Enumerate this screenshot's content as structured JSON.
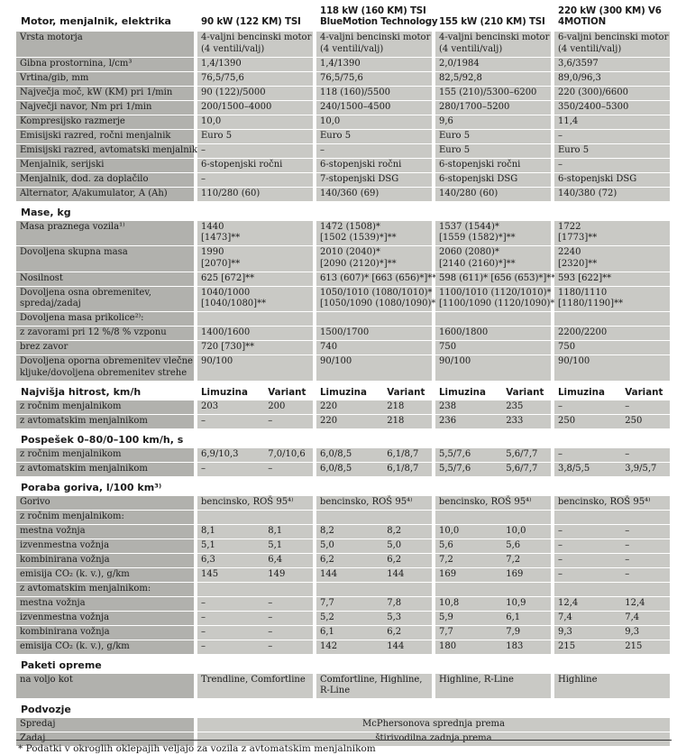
{
  "page": {
    "footnote": "* Podatki v okroglih oklepajih veljajo za vozila z avtomatskim menjalnikom"
  },
  "table": {
    "header": {
      "label": "Motor, menjalnik, elektrika",
      "engines": [
        "90 kW (122 KM) TSI",
        "118 kW (160 KM) TSI\nBlueMotion Technology",
        "155 kW (210 KM) TSI",
        "220 kW (300 KM) V6\n4MOTION"
      ]
    },
    "sections": [
      {
        "title": null,
        "rows": [
          {
            "label": "Vrsta motorja",
            "v": [
              "4-valjni bencinski motor\n(4 ventili/valj)",
              "4-valjni bencinski motor\n(4 ventili/valj)",
              "4-valjni bencinski motor\n(4 ventili/valj)",
              "6-valjni bencinski motor\n(4 ventili/valj)"
            ]
          },
          {
            "label": "Gibna prostornina, l/cm³",
            "v": [
              "1,4/1390",
              "1,4/1390",
              "2,0/1984",
              "3,6/3597"
            ]
          },
          {
            "label": "Vrtina/gib, mm",
            "v": [
              "76,5/75,6",
              "76,5/75,6",
              "82,5/92,8",
              "89,0/96,3"
            ]
          },
          {
            "label": "Največja moč, kW (KM) pri 1/min",
            "v": [
              "90 (122)/5000",
              "118 (160)/5500",
              "155 (210)/5300–6200",
              "220 (300)/6600"
            ]
          },
          {
            "label": "Največji navor, Nm pri 1/min",
            "v": [
              "200/1500–4000",
              "240/1500–4500",
              "280/1700–5200",
              "350/2400–5300"
            ]
          },
          {
            "label": "Kompresijsko razmerje",
            "v": [
              "10,0",
              "10,0",
              "9,6",
              "11,4"
            ]
          },
          {
            "label": "Emisijski razred, ročni menjalnik",
            "v": [
              "Euro 5",
              "Euro 5",
              "Euro 5",
              "–"
            ]
          },
          {
            "label": "Emisijski razred, avtomatski menjalnik",
            "v": [
              "–",
              "–",
              "Euro 5",
              "Euro 5"
            ]
          },
          {
            "label": "Menjalnik, serijski",
            "v": [
              "6-stopenjski ročni",
              "6-stopenjski ročni",
              "6-stopenjski ročni",
              "–"
            ]
          },
          {
            "label": "Menjalnik, dod. za doplačilo",
            "v": [
              "–",
              "7-stopenjski DSG",
              "6-stopenjski DSG",
              "6-stopenjski DSG"
            ]
          },
          {
            "label": "Alternator, A/akumulator, A (Ah)",
            "v": [
              "110/280 (60)",
              "140/360 (69)",
              "140/280 (60)",
              "140/380 (72)"
            ]
          }
        ]
      },
      {
        "title": "Mase, kg",
        "rows": [
          {
            "label": "Masa praznega vozila¹⁾",
            "v": [
              "1440\n[1473]**",
              "1472 (1508)*\n[1502 (1539)*]**",
              "1537 (1544)*\n[1559 (1582)*]**",
              "1722\n[1773]**"
            ]
          },
          {
            "label": "Dovoljena skupna masa",
            "v": [
              "1990\n[2070]**",
              "2010 (2040)*\n[2090 (2120)*]**",
              "2060 (2080)*\n[2140 (2160)*]**",
              "2240\n[2320]**"
            ]
          },
          {
            "label": "Nosilnost",
            "v": [
              "625 [672]**",
              "613 (607)* [663 (656)*]**",
              "598 (611)* [656 (653)*]**",
              "593 [622]**"
            ]
          },
          {
            "label": "Dovoljena osna obremenitev,\nspredaj/zadaj",
            "v": [
              "1040/1000\n[1040/1080]**",
              "1050/1010 (1080/1010)*\n[1050/1090 (1080/1090)*]**",
              "1100/1010 (1120/1010)*\n[1100/1090 (1120/1090)*]**",
              "1180/1110\n[1180/1190]**"
            ]
          },
          {
            "label": "Dovoljena masa prikolice²⁾:",
            "v": [
              "",
              "",
              "",
              ""
            ]
          },
          {
            "label": "z zavorami pri 12 %/8 % vzponu",
            "v": [
              "1400/1600",
              "1500/1700",
              "1600/1800",
              "2200/2200"
            ]
          },
          {
            "label": "brez zavor",
            "v": [
              "720 [730]**",
              "740",
              "750",
              "750"
            ]
          },
          {
            "label": "Dovoljena oporna obremenitev vlečne\nkljuke/dovoljena obremenitev strehe",
            "v": [
              "90/100",
              "90/100",
              "90/100",
              "90/100"
            ]
          }
        ]
      },
      {
        "title": "Najvišja hitrost, km/h",
        "subheaders": [
          "Limuzina",
          "Variant"
        ],
        "rows": [
          {
            "label": "z ročnim menjalnikom",
            "v8": [
              "203",
              "200",
              "220",
              "218",
              "238",
              "235",
              "–",
              "–"
            ]
          },
          {
            "label": "z avtomatskim menjalnikom",
            "v8": [
              "–",
              "–",
              "220",
              "218",
              "236",
              "233",
              "250",
              "250"
            ]
          }
        ]
      },
      {
        "title": "Pospešek 0–80/0–100 km/h, s",
        "rows": [
          {
            "label": "z ročnim menjalnikom",
            "v8": [
              "6,9/10,3",
              "7,0/10,6",
              "6,0/8,5",
              "6,1/8,7",
              "5,5/7,6",
              "5,6/7,7",
              "–",
              "–"
            ]
          },
          {
            "label": "z avtomatskim menjalnikom",
            "v8": [
              "–",
              "–",
              "6,0/8,5",
              "6,1/8,7",
              "5,5/7,6",
              "5,6/7,7",
              "3,8/5,5",
              "3,9/5,7"
            ]
          }
        ]
      },
      {
        "title": "Poraba goriva, l/100 km³⁾",
        "rows": [
          {
            "label": "Gorivo",
            "v": [
              "bencinsko, ROŠ 95⁴⁾",
              "bencinsko, ROŠ 95⁴⁾",
              "bencinsko, ROŠ 95⁴⁾",
              "bencinsko, ROŠ 95⁴⁾"
            ]
          },
          {
            "label": "z ročnim menjalnikom:",
            "v": [
              "",
              "",
              "",
              ""
            ]
          },
          {
            "label": "mestna vožnja",
            "v8": [
              "8,1",
              "8,1",
              "8,2",
              "8,2",
              "10,0",
              "10,0",
              "–",
              "–"
            ]
          },
          {
            "label": "izvenmestna vožnja",
            "v8": [
              "5,1",
              "5,1",
              "5,0",
              "5,0",
              "5,6",
              "5,6",
              "–",
              "–"
            ]
          },
          {
            "label": "kombinirana vožnja",
            "v8": [
              "6,3",
              "6,4",
              "6,2",
              "6,2",
              "7,2",
              "7,2",
              "–",
              "–"
            ]
          },
          {
            "label": "emisija CO₂ (k. v.), g/km",
            "v8": [
              "145",
              "149",
              "144",
              "144",
              "169",
              "169",
              "–",
              "–"
            ]
          },
          {
            "label": "z avtomatskim menjalnikom:",
            "v": [
              "",
              "",
              "",
              ""
            ]
          },
          {
            "label": "mestna vožnja",
            "v8": [
              "–",
              "–",
              "7,7",
              "7,8",
              "10,8",
              "10,9",
              "12,4",
              "12,4"
            ]
          },
          {
            "label": "izvenmestna vožnja",
            "v8": [
              "–",
              "–",
              "5,2",
              "5,3",
              "5,9",
              "6,1",
              "7,4",
              "7,4"
            ]
          },
          {
            "label": "kombinirana vožnja",
            "v8": [
              "–",
              "–",
              "6,1",
              "6,2",
              "7,7",
              "7,9",
              "9,3",
              "9,3"
            ]
          },
          {
            "label": "emisija CO₂ (k. v.), g/km",
            "v8": [
              "–",
              "–",
              "142",
              "144",
              "180",
              "183",
              "215",
              "215"
            ]
          }
        ]
      },
      {
        "title": "Paketi opreme",
        "rows": [
          {
            "label": "na voljo kot",
            "v": [
              "Trendline, Comfortline",
              "Comfortline, Highline,\nR-Line",
              "Highline, R-Line",
              "Highline"
            ]
          }
        ]
      },
      {
        "title": "Podvozje",
        "rows": [
          {
            "label": "Spredaj",
            "v1": "McPhersonova sprednja prema"
          },
          {
            "label": "Zadaj",
            "v1": "štirivodilna zadnja prema"
          }
        ]
      }
    ]
  }
}
